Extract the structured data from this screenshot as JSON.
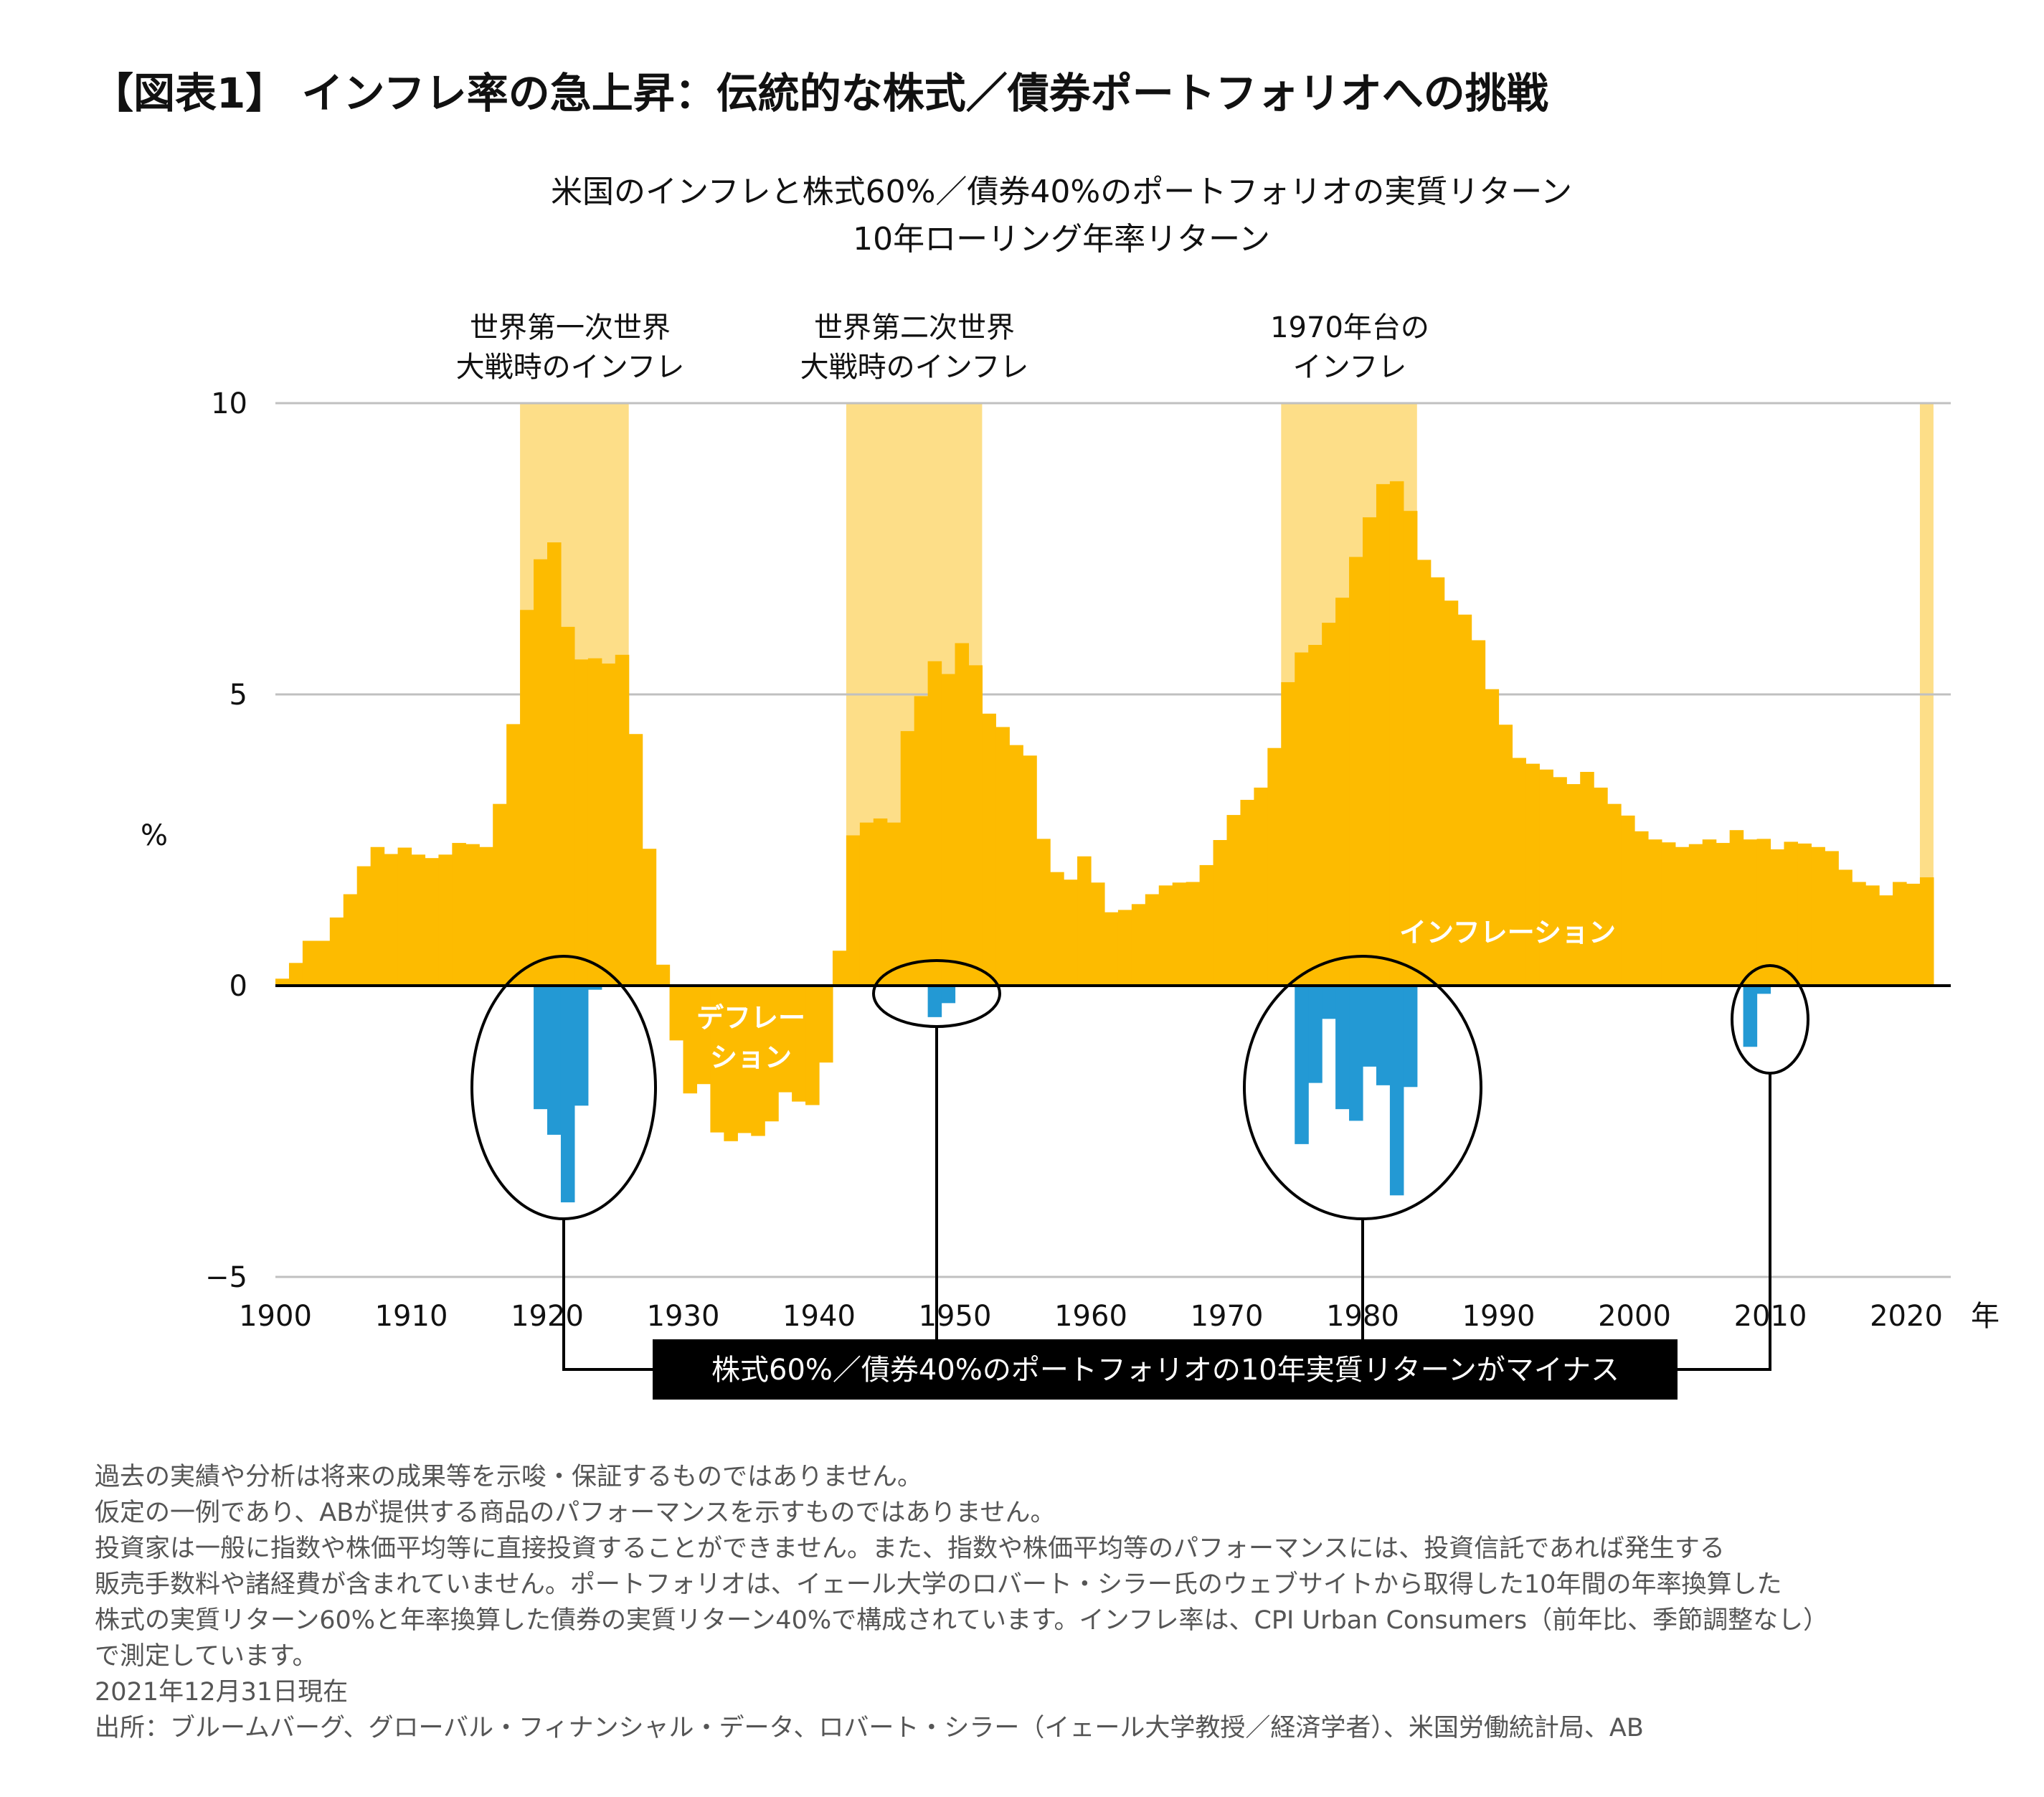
{
  "title": "【図表1】 インフレ率の急上昇：伝統的な株式／債券ポートフォリオへの挑戦",
  "chart_data": {
    "type": "bar",
    "title": "米国のインフレと株式60%／債券40%のポートフォリオの実質リターン",
    "subtitle": "10年ローリング年率リターン",
    "ylabel": "%",
    "xlabel": "年",
    "ylim": [
      -5,
      10
    ],
    "yticks": [
      "10",
      "5",
      "0",
      "−5"
    ],
    "ytick_values": [
      10,
      5,
      0,
      -5
    ],
    "xticks": [
      "1900",
      "1910",
      "1920",
      "1930",
      "1940",
      "1950",
      "1960",
      "1970",
      "1980",
      "1990",
      "2000",
      "2010",
      "2020"
    ],
    "grid": true,
    "colors": {
      "inflation": "#FDBB00",
      "highlight": "#FDDE88",
      "negative_return": "#2399D4"
    },
    "inflation": {
      "start_year": 1900,
      "values": [
        0.12,
        0.39,
        0.77,
        0.77,
        1.17,
        1.57,
        2.05,
        2.38,
        2.26,
        2.37,
        2.25,
        2.19,
        2.25,
        2.45,
        2.43,
        2.38,
        3.12,
        4.49,
        6.45,
        7.32,
        7.61,
        6.16,
        5.6,
        5.62,
        5.53,
        5.68,
        4.32,
        2.35,
        0.36,
        -0.94,
        -1.85,
        -1.69,
        -2.52,
        -2.67,
        -2.53,
        -2.58,
        -2.33,
        -1.83,
        -1.99,
        -2.05,
        -1.32,
        0.6,
        2.58,
        2.8,
        2.87,
        2.8,
        4.37,
        4.97,
        5.57,
        5.35,
        5.88,
        5.5,
        4.67,
        4.44,
        4.13,
        3.95,
        2.52,
        1.95,
        1.82,
        2.22,
        1.77,
        1.26,
        1.3,
        1.4,
        1.57,
        1.72,
        1.77,
        1.78,
        2.07,
        2.5,
        2.93,
        3.19,
        3.4,
        4.08,
        5.21,
        5.72,
        5.85,
        6.23,
        6.66,
        7.36,
        8.04,
        8.61,
        8.66,
        8.15,
        7.31,
        7.01,
        6.61,
        6.37,
        5.93,
        5.09,
        4.48,
        3.91,
        3.81,
        3.71,
        3.58,
        3.46,
        3.67,
        3.4,
        3.12,
        2.92,
        2.65,
        2.51,
        2.46,
        2.38,
        2.43,
        2.51,
        2.45,
        2.67,
        2.51,
        2.52,
        2.34,
        2.47,
        2.44,
        2.38,
        2.31,
        1.99,
        1.78,
        1.72,
        1.55,
        1.78,
        1.75,
        1.86
      ]
    },
    "negative_real_returns": [
      {
        "year": 1919,
        "value": -2.12
      },
      {
        "year": 1920,
        "value": -2.56
      },
      {
        "year": 1921,
        "value": -3.72
      },
      {
        "year": 1922,
        "value": -2.06
      },
      {
        "year": 1923,
        "value": -0.07
      },
      {
        "year": 1948,
        "value": -0.54
      },
      {
        "year": 1949,
        "value": -0.3
      },
      {
        "year": 1975,
        "value": -2.72
      },
      {
        "year": 1976,
        "value": -1.67
      },
      {
        "year": 1977,
        "value": -0.57
      },
      {
        "year": 1978,
        "value": -2.12
      },
      {
        "year": 1979,
        "value": -2.32
      },
      {
        "year": 1980,
        "value": -1.39
      },
      {
        "year": 1981,
        "value": -1.71
      },
      {
        "year": 1982,
        "value": -3.6
      },
      {
        "year": 1983,
        "value": -1.74
      },
      {
        "year": 2008,
        "value": -1.05
      },
      {
        "year": 2009,
        "value": -0.14
      }
    ],
    "highlight_periods": [
      [
        1918,
        1925
      ],
      [
        1942,
        1951
      ],
      [
        1974,
        1983
      ],
      [
        2021,
        2021
      ]
    ],
    "annotations": {
      "ww1": [
        "世界第一次世界",
        "大戦時のインフレ"
      ],
      "ww2": [
        "世界第二次世界",
        "大戦時のインフレ"
      ],
      "seventies": [
        "1970年台の",
        "インフレ"
      ],
      "deflation": [
        "デフレー",
        "ション"
      ],
      "inflation": "インフレーション",
      "negative_callout": "株式60%／債券40%のポートフォリオの10年実質リターンがマイナス"
    }
  },
  "footnotes": [
    "過去の実績や分析は将来の成果等を示唆・保証するものではありません。",
    "仮定の一例であり、ABが提供する商品のパフォーマンスを示すものではありません。",
    "投資家は一般に指数や株価平均等に直接投資することができません。また、指数や株価平均等のパフォーマンスには、投資信託であれば発生する",
    "販売手数料や諸経費が含まれていません。ポートフォリオは、イェール大学のロバート・シラー氏のウェブサイトから取得した10年間の年率換算した",
    "株式の実質リターン60%と年率換算した債券の実質リターン40%で構成されています。インフレ率は、CPI Urban Consumers（前年比、季節調整なし）",
    "で測定しています。",
    "2021年12月31日現在",
    "出所：ブルームバーグ、グローバル・フィナンシャル・データ、ロバート・シラー（イェール大学教授／経済学者）、米国労働統計局、AB"
  ]
}
